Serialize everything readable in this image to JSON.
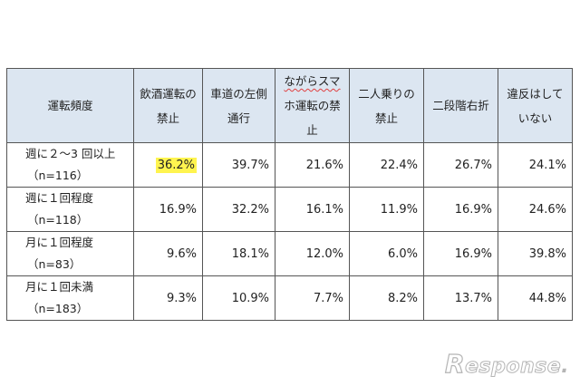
{
  "table": {
    "headers": [
      {
        "lines": [
          "運転頻度"
        ]
      },
      {
        "lines": [
          "飲酒運転の",
          "禁止"
        ]
      },
      {
        "lines": [
          "車道の左側",
          "通行"
        ]
      },
      {
        "lines": [
          "ながらスマ",
          "ホ運転の禁",
          "止"
        ]
      },
      {
        "lines": [
          "二人乗りの",
          "禁止"
        ]
      },
      {
        "lines": [
          "二段階右折"
        ]
      },
      {
        "lines": [
          "違反はして",
          "いない"
        ]
      }
    ],
    "rows": [
      {
        "label": "週に２〜3 回以上",
        "n": "（n=116）",
        "values": [
          "36.2%",
          "39.7%",
          "21.6%",
          "22.4%",
          "26.7%",
          "24.1%"
        ]
      },
      {
        "label": "週に１回程度",
        "n": "（n=118）",
        "values": [
          "16.9%",
          "32.2%",
          "16.1%",
          "11.9%",
          "16.9%",
          "24.6%"
        ]
      },
      {
        "label": "月に１回程度",
        "n": "（n=83）",
        "values": [
          "9.6%",
          "18.1%",
          "12.0%",
          "6.0%",
          "16.9%",
          "39.8%"
        ]
      },
      {
        "label": "月に１回未満",
        "n": "（n=183）",
        "values": [
          "9.3%",
          "10.9%",
          "7.7%",
          "8.2%",
          "13.7%",
          "44.8%"
        ]
      }
    ],
    "highlight_color": "#fff44f",
    "header_bg": "#dce6f1"
  },
  "logo": {
    "r": "R",
    "rest": "esponse",
    "dot": "."
  }
}
